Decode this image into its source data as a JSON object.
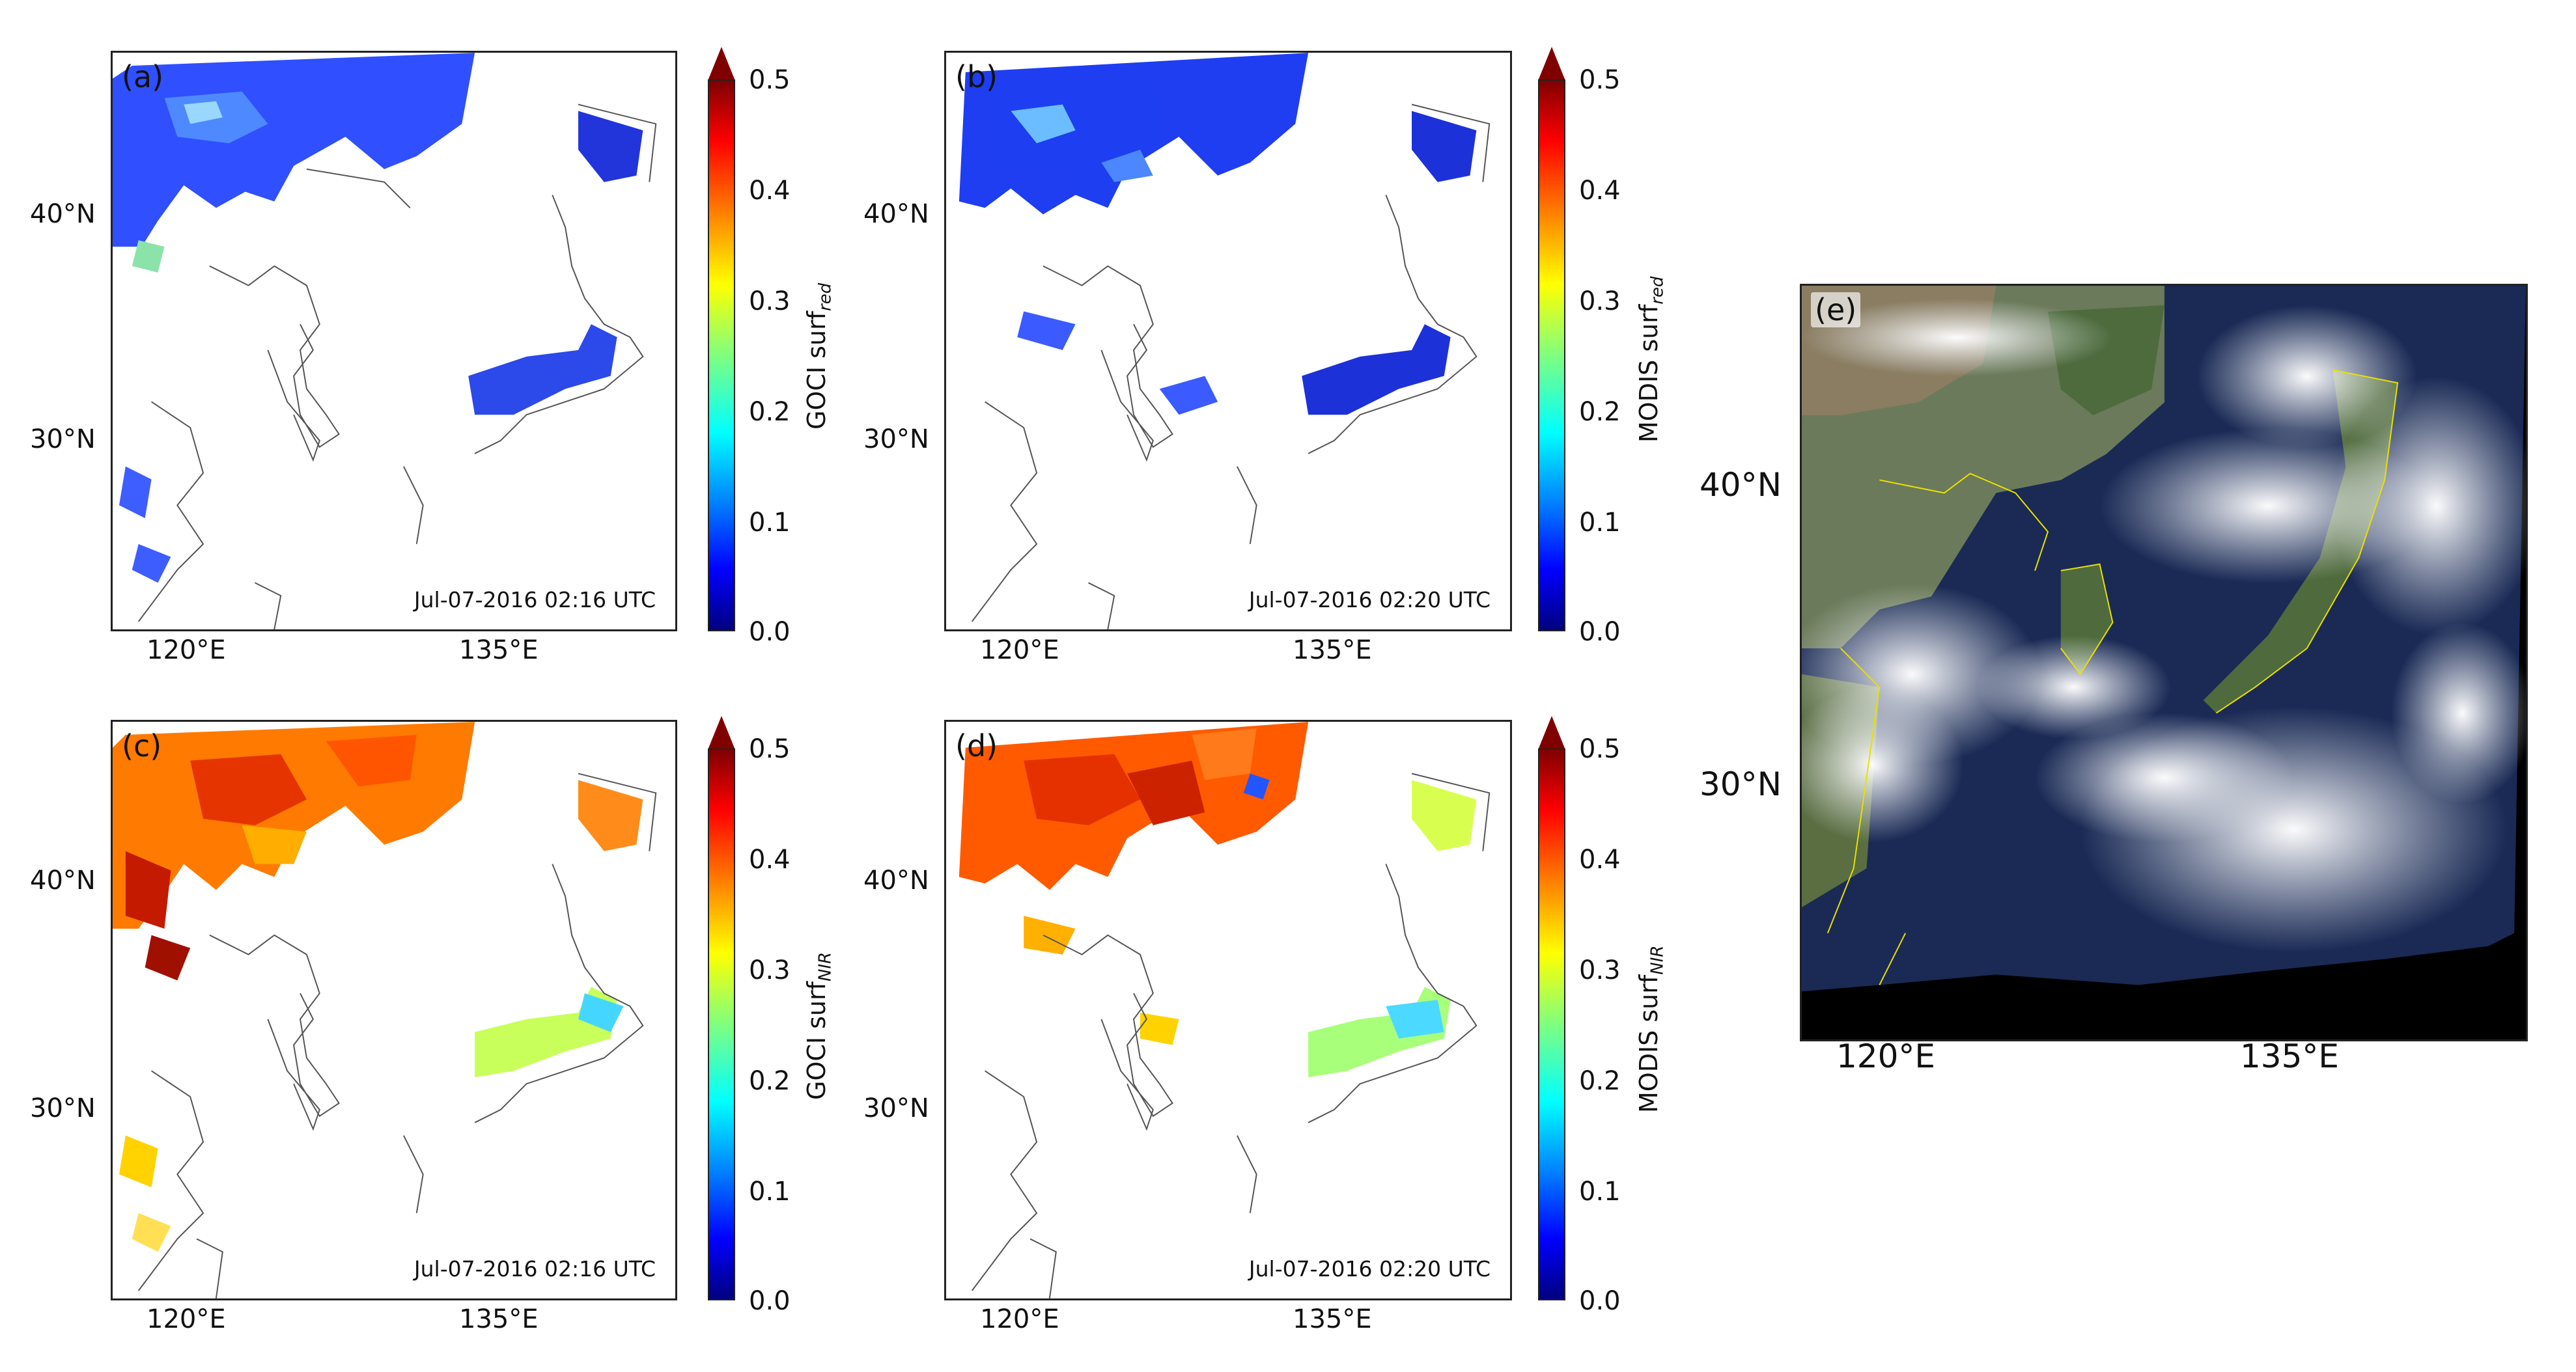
{
  "panels": [
    {
      "label": "(a)",
      "timestamp": "Jul-07-2016 02:16 UTC",
      "colorbar_title": "GOCI surf",
      "colorbar_sub": "red",
      "variable": "surf_red"
    },
    {
      "label": "(b)",
      "timestamp": "Jul-07-2016 02:20 UTC",
      "colorbar_title": "MODIS surf",
      "colorbar_sub": "red",
      "variable": "surf_red"
    },
    {
      "label": "(c)",
      "timestamp": "Jul-07-2016 02:16 UTC",
      "colorbar_title": "GOCI surf",
      "colorbar_sub": "NIR",
      "variable": "surf_NIR"
    },
    {
      "label": "(d)",
      "timestamp": "Jul-07-2016 02:20 UTC",
      "colorbar_title": "MODIS surf",
      "colorbar_sub": "NIR",
      "variable": "surf_NIR"
    },
    {
      "label": "(e)",
      "description_type": "true-color satellite image"
    }
  ],
  "axes": {
    "lat_ticks": [
      "40°N",
      "30°N"
    ],
    "lon_ticks": [
      "120°E",
      "135°E"
    ]
  },
  "colorbar": {
    "ticks": [
      "0.5",
      "0.4",
      "0.3",
      "0.2",
      "0.1",
      "0.0"
    ],
    "range": [
      0.0,
      0.5
    ],
    "colormap": "jet",
    "extend": "max"
  },
  "colors": {
    "low": "#00007f",
    "mid": "#7fff7f",
    "high": "#7f0000",
    "coastline": "#555555",
    "satellite_border": "#e8e000"
  }
}
